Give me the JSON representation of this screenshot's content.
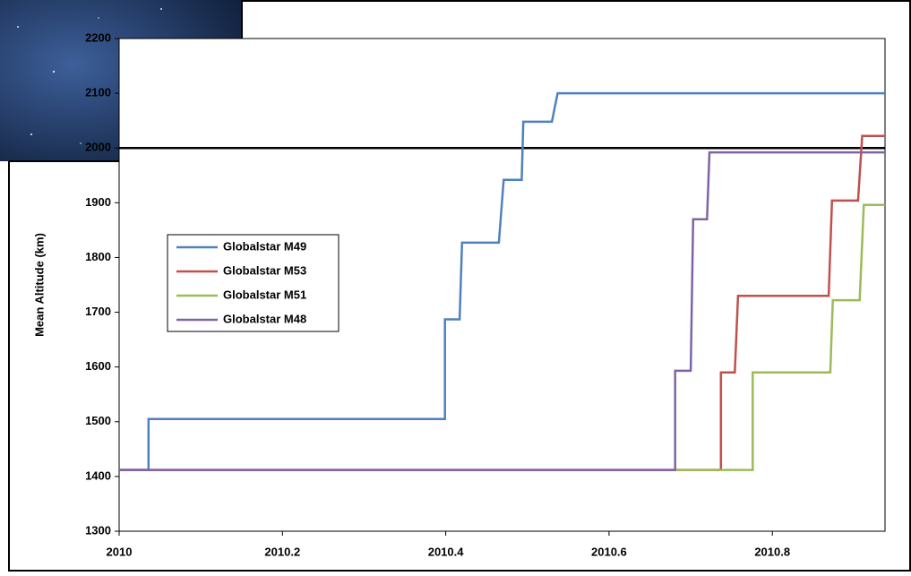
{
  "chart_data": {
    "type": "line",
    "y_label": "Mean Altitude (km)",
    "xlim": [
      2010,
      2010.938
    ],
    "ylim": [
      1300,
      2200
    ],
    "xticks": [
      2010,
      2010.2,
      2010.4,
      2010.6,
      2010.8
    ],
    "yticks": [
      1300,
      1400,
      1500,
      1600,
      1700,
      1800,
      1900,
      2000,
      2100,
      2200
    ],
    "reference_line": 2000,
    "legend": "left",
    "series": [
      {
        "name": "Globalstar M49",
        "color": "#4f81bd",
        "x": [
          2010,
          2010.036,
          2010.036,
          2010.399,
          2010.399,
          2010.417,
          2010.42,
          2010.465,
          2010.471,
          2010.493,
          2010.495,
          2010.53,
          2010.537,
          2010.938
        ],
        "values": [
          1412,
          1412,
          1505,
          1505,
          1687,
          1687,
          1827,
          1827,
          1942,
          1942,
          2048,
          2048,
          2100,
          2100
        ]
      },
      {
        "name": "Globalstar M53",
        "color": "#c0504d",
        "x": [
          2010,
          2010.737,
          2010.737,
          2010.754,
          2010.758,
          2010.869,
          2010.873,
          2010.905,
          2010.91,
          2010.938
        ],
        "values": [
          1412,
          1412,
          1590,
          1590,
          1730,
          1730,
          1904,
          1904,
          2022,
          2022
        ]
      },
      {
        "name": "Globalstar M51",
        "color": "#9bbb59",
        "x": [
          2010.68,
          2010.776,
          2010.776,
          2010.871,
          2010.874,
          2010.907,
          2010.912,
          2010.938
        ],
        "values": [
          1412,
          1412,
          1590,
          1590,
          1722,
          1722,
          1896,
          1896
        ]
      },
      {
        "name": "Globalstar M48",
        "color": "#8064a2",
        "x": [
          2010,
          2010.681,
          2010.681,
          2010.7,
          2010.703,
          2010.72,
          2010.723,
          2010.938
        ],
        "values": [
          1412,
          1412,
          1593,
          1593,
          1870,
          1870,
          1992,
          1992
        ]
      }
    ]
  }
}
